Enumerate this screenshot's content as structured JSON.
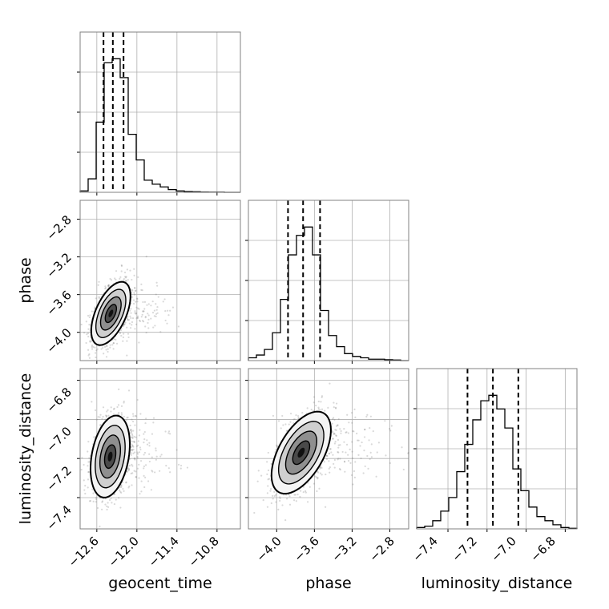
{
  "chart_data": {
    "type": "corner",
    "parameters": [
      "geocent_time",
      "phase",
      "luminosity_distance"
    ],
    "labels": {
      "x": [
        "geocent_time",
        "phase",
        "luminosity_distance"
      ],
      "y": [
        "",
        "phase",
        "luminosity_distance"
      ]
    },
    "ranges": {
      "geocent_time": [
        -12.85,
        -10.45
      ],
      "phase": [
        -4.3,
        -2.6
      ],
      "luminosity_distance": [
        -7.56,
        -6.74
      ]
    },
    "ticks": {
      "geocent_time": [
        -12.6,
        -12.0,
        -11.4,
        -10.8
      ],
      "phase": [
        -4.0,
        -3.6,
        -3.2,
        -2.8
      ],
      "luminosity_distance": [
        -7.4,
        -7.2,
        -7.0,
        -6.8
      ]
    },
    "tick_labels": {
      "geocent_time": [
        "−12.6",
        "−12.0",
        "−11.4",
        "−10.8"
      ],
      "phase": [
        "−4.0",
        "−3.6",
        "−3.2",
        "−2.8"
      ],
      "luminosity_distance": [
        "−7.4",
        "−7.2",
        "−7.0",
        "−6.8"
      ]
    },
    "quantiles": {
      "geocent_time": [
        -12.5,
        -12.36,
        -12.2
      ],
      "phase": [
        -3.88,
        -3.72,
        -3.54
      ],
      "luminosity_distance": [
        -7.3,
        -7.17,
        -7.04
      ]
    },
    "histograms": {
      "geocent_time": {
        "edges": [
          -12.85,
          -12.73,
          -12.61,
          -12.49,
          -12.37,
          -12.25,
          -12.13,
          -12.01,
          -11.89,
          -11.77,
          -11.65,
          -11.53,
          -11.41,
          -11.29,
          -11.17,
          -11.05,
          -10.93,
          -10.81,
          -10.69,
          -10.57,
          -10.45
        ],
        "counts": [
          0.5,
          5.0,
          26.0,
          48.0,
          49.5,
          42.5,
          21.5,
          12.0,
          4.5,
          3.0,
          2.0,
          1.0,
          0.5,
          0.3,
          0.2,
          0.1,
          0.05,
          0.05,
          0.0,
          0.0
        ]
      },
      "phase": {
        "edges": [
          -4.3,
          -4.215,
          -4.13,
          -4.045,
          -3.96,
          -3.875,
          -3.79,
          -3.705,
          -3.62,
          -3.535,
          -3.45,
          -3.365,
          -3.28,
          -3.195,
          -3.11,
          -3.025,
          -2.94,
          -2.855,
          -2.77,
          -2.685,
          -2.6
        ],
        "counts": [
          1.0,
          2.0,
          4.0,
          10.0,
          22.0,
          38.0,
          45.0,
          48.0,
          38.0,
          18.0,
          9.0,
          5.0,
          2.5,
          1.5,
          1.0,
          0.5,
          0.5,
          0.3,
          0.2,
          0.0
        ]
      },
      "luminosity_distance": {
        "edges": [
          -7.56,
          -7.519,
          -7.478,
          -7.437,
          -7.396,
          -7.355,
          -7.314,
          -7.273,
          -7.232,
          -7.191,
          -7.15,
          -7.109,
          -7.068,
          -7.027,
          -6.986,
          -6.945,
          -6.904,
          -6.863,
          -6.822,
          -6.781,
          -6.74
        ],
        "counts": [
          0.5,
          1.0,
          3.0,
          6.5,
          11.5,
          21.0,
          31.0,
          40.0,
          47.0,
          49.0,
          44.0,
          37.0,
          22.0,
          14.0,
          8.0,
          4.5,
          3.0,
          1.5,
          0.5,
          0.2
        ]
      }
    },
    "pairs": [
      {
        "x": "geocent_time",
        "y": "phase",
        "center": [
          -12.39,
          -3.8
        ],
        "sigma": [
          0.14,
          0.16
        ],
        "rho": 0.55
      },
      {
        "x": "geocent_time",
        "y": "luminosity_distance",
        "center": [
          -12.4,
          -7.19
        ],
        "sigma": [
          0.14,
          0.1
        ],
        "rho": 0.3
      },
      {
        "x": "phase",
        "y": "luminosity_distance",
        "center": [
          -3.74,
          -7.17
        ],
        "sigma": [
          0.15,
          0.1
        ],
        "rho": 0.55
      }
    ],
    "grid": true,
    "colors": {
      "lines": "#000000",
      "scatter": "#777777",
      "grid": "#b0b0b0",
      "frame": "#808080"
    }
  }
}
